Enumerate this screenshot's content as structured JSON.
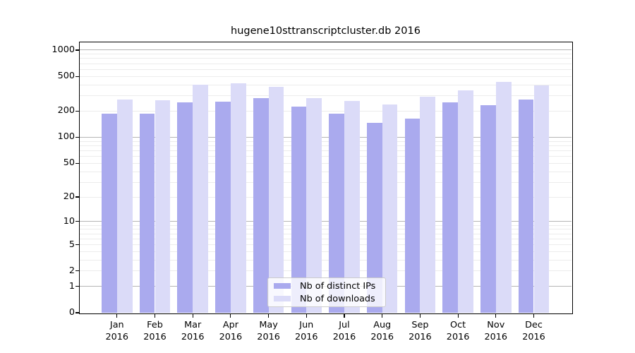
{
  "colors": {
    "distinct_ips": "#aaaaee",
    "downloads": "#dbdbf8",
    "grid_major": "#b5b5b5",
    "grid_minor": "#ececec",
    "axis": "#000000",
    "legend_border": "#cccccc"
  },
  "chart_data": {
    "type": "bar",
    "title": "hugene10sttranscriptcluster.db 2016",
    "scale": "log10(1+x)",
    "categories": [
      "Jan",
      "Feb",
      "Mar",
      "Apr",
      "May",
      "Jun",
      "Jul",
      "Aug",
      "Sep",
      "Oct",
      "Nov",
      "Dec"
    ],
    "year": "2016",
    "series": [
      {
        "name": "Nb of distinct IPs",
        "values": [
          187,
          187,
          252,
          258,
          282,
          226,
          188,
          148,
          165,
          250,
          236,
          272
        ]
      },
      {
        "name": "Nb of downloads",
        "values": [
          270,
          268,
          400,
          420,
          381,
          281,
          260,
          240,
          290,
          344,
          430,
          394
        ]
      }
    ],
    "yticks": [
      1000,
      500,
      200,
      100,
      50,
      20,
      10,
      5,
      2,
      1,
      0
    ],
    "ylim": [
      0,
      1000
    ],
    "xlabel": "",
    "ylabel": "",
    "grid": true,
    "legend_position": "lower center"
  }
}
